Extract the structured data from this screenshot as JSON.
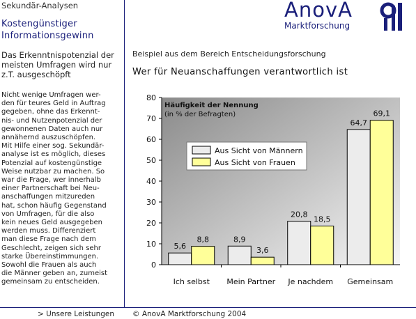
{
  "sidebar": {
    "section_label": "Sekundär-Analysen",
    "title_line1": "Kostengünstiger",
    "title_line2": "Informationsgewinn",
    "subtitle": "Das Erkenntnispotenzial der meisten Umfragen wird nur z.T. ausgeschöpft",
    "body": "Nicht wenige Umfragen wer-\nden für teures Geld in Auftrag\ngegeben, ohne das Erkennt-\nnis- und Nutzenpotenzial der\ngewonnenen Daten auch nur\nannähernd auszuschöpfen.\nMit Hilfe einer sog. Sekundär-\nanalyse ist es möglich, dieses\nPotenzial auf kostengünstige\nWeise nutzbar zu machen. So\nwar die Frage, wer innerhalb\neiner Partnerschaft bei Neu-\nanschaffungen mitzureden\nhat, schon häufig Gegenstand\nvon Umfragen, für die also\nkein neues Geld ausgegeben\nwerden muss. Differenziert\nman diese Frage nach dem\nGeschlecht, zeigen sich sehr\nstarke Übereinstimmungen.\nSowohl die Frauen als auch\ndie Männer geben an, zumeist\ngemeinsam zu entscheiden."
  },
  "logo": {
    "name": "AnovA",
    "subtitle": "Marktforschung",
    "color": "#1a1f7a"
  },
  "main": {
    "heading": "Beispiel aus dem Bereich Entscheidungsforschung",
    "title": "Wer für Neuanschaffungen verantwortlich ist"
  },
  "footer": {
    "link": "> Unsere Leistungen",
    "copyright": "© AnovA Marktforschung 2004"
  },
  "chart_data": {
    "type": "bar",
    "title": "Häufigkeit der Nennung",
    "subtitle": "(in % der Befragten)",
    "categories": [
      "Ich selbst",
      "Mein Partner",
      "Je nachdem",
      "Gemeinsam"
    ],
    "series": [
      {
        "name": "Aus Sicht von Männern",
        "values": [
          5.6,
          8.9,
          20.8,
          64.7
        ],
        "labels": [
          "5,6",
          "8,9",
          "20,8",
          "64,7"
        ],
        "color": "#ececec"
      },
      {
        "name": "Aus Sicht von Frauen",
        "values": [
          8.8,
          3.6,
          18.5,
          69.1
        ],
        "labels": [
          "8,8",
          "3,6",
          "18,5",
          "69,1"
        ],
        "color": "#ffff99"
      }
    ],
    "yticks": [
      0,
      10,
      20,
      30,
      40,
      50,
      60,
      70,
      80
    ],
    "ylim": [
      0,
      80
    ],
    "legend_position": "upper-left inside plot",
    "grid": false,
    "plot_background": "gradient-gray"
  }
}
